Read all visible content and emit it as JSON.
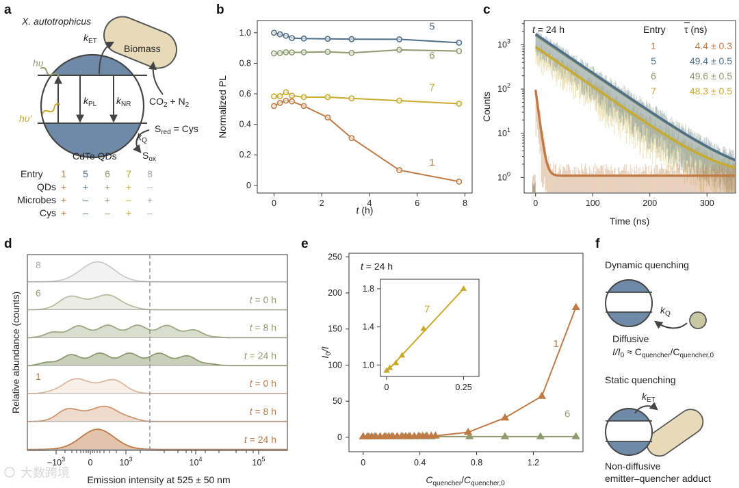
{
  "colors": {
    "entry1": "#c07a45",
    "entry5": "#4e6f89",
    "entry6": "#8f9a6e",
    "entry7": "#c8aa2c",
    "entry8": "#a6a6a6",
    "qd": "#6f8aa6",
    "microbe": "#e6dab8",
    "ink": "#222222"
  },
  "panel_a": {
    "letter": "a",
    "organism": "X. autotrophicus",
    "k_et_k": "k",
    "k_et_sub": "ET",
    "biomass": "Biomass",
    "hv": "hυ",
    "hv_prime": "hυ′",
    "k_pl_k": "k",
    "k_pl_sub": "PL",
    "k_nr_k": "k",
    "k_nr_sub": "NR",
    "co2_left": "CO",
    "co2_sub": "2",
    "co2_right": " + N",
    "n2_sub": "2",
    "sred_s": "S",
    "sred_sub": "red",
    "sred_rest": " = Cys",
    "kq_k": "k",
    "kq_sub": "Q",
    "sox_s": "S",
    "sox_sub": "ox",
    "qd_label": "CdTe QDs",
    "table": {
      "header_label": "Entry",
      "entries": [
        "1",
        "5",
        "6",
        "7",
        "8"
      ],
      "rows": [
        {
          "label": "QDs",
          "values": [
            "+",
            "+",
            "+",
            "+",
            "–"
          ]
        },
        {
          "label": "Microbes",
          "values": [
            "+",
            "–",
            "+",
            "–",
            "+"
          ]
        },
        {
          "label": "Cys",
          "values": [
            "+",
            "–",
            "–",
            "+",
            "–"
          ]
        }
      ]
    }
  },
  "chart_data": [
    {
      "id": "b",
      "letter": "b",
      "type": "line",
      "xlabel_var": "t",
      "xlabel_unit": " (h)",
      "ylabel": "Normalized PL",
      "xlim": [
        -0.7,
        8.3
      ],
      "ylim": [
        -0.05,
        1.08
      ],
      "xticks": [
        0,
        2,
        4,
        6,
        8
      ],
      "yticks": [
        0,
        0.2,
        0.4,
        0.6,
        0.8,
        1.0
      ],
      "ytick_labels": [
        "0",
        "0.2",
        "0.4",
        "0.6",
        "0.8",
        "1.0"
      ],
      "series": [
        {
          "name": "5",
          "color_key": "entry5",
          "x": [
            0,
            0.25,
            0.5,
            0.75,
            1.25,
            2.25,
            3.25,
            5.25,
            7.75
          ],
          "y": [
            1.0,
            0.99,
            0.98,
            0.965,
            0.962,
            0.96,
            0.958,
            0.957,
            0.935
          ]
        },
        {
          "name": "6",
          "color_key": "entry6",
          "x": [
            0,
            0.25,
            0.5,
            0.75,
            1.25,
            2.25,
            3.25,
            5.25,
            7.75
          ],
          "y": [
            0.865,
            0.867,
            0.872,
            0.871,
            0.872,
            0.875,
            0.868,
            0.888,
            0.88
          ]
        },
        {
          "name": "7",
          "color_key": "entry7",
          "x": [
            0,
            0.25,
            0.5,
            0.75,
            1.25,
            2.25,
            3.25,
            5.25,
            7.75
          ],
          "y": [
            0.583,
            0.585,
            0.61,
            0.588,
            0.578,
            0.578,
            0.57,
            0.555,
            0.535
          ]
        },
        {
          "name": "1",
          "color_key": "entry1",
          "x": [
            0,
            0.25,
            0.5,
            0.75,
            1.25,
            2.25,
            3.25,
            5.25,
            7.75
          ],
          "y": [
            0.52,
            0.54,
            0.555,
            0.55,
            0.52,
            0.445,
            0.31,
            0.1,
            0.025
          ]
        }
      ],
      "series_labels": [
        {
          "name": "5",
          "x": 6.5,
          "y": 1.02
        },
        {
          "name": "6",
          "x": 6.5,
          "y": 0.83
        },
        {
          "name": "7",
          "x": 6.5,
          "y": 0.62
        },
        {
          "name": "1",
          "x": 6.5,
          "y": 0.13
        }
      ]
    },
    {
      "id": "c",
      "letter": "c",
      "type": "line",
      "yscale": "log",
      "annotation_var": "t",
      "annotation_rest": " = 24 h",
      "xlabel": "Time (ns)",
      "ylabel": "Counts",
      "xlim": [
        -20,
        350
      ],
      "ylim_log": [
        -0.35,
        3.55
      ],
      "xticks": [
        0,
        100,
        200,
        300
      ],
      "yticks_exp": [
        0,
        1,
        2,
        3
      ],
      "legend_header_entry": "Entry",
      "legend_header_tau": "τ (ns)",
      "legend": [
        {
          "entry": "1",
          "tau": "4.4 ± 0.3",
          "color_key": "entry1"
        },
        {
          "entry": "5",
          "tau": "49.4 ± 0.5",
          "color_key": "entry5"
        },
        {
          "entry": "6",
          "tau": "49.6 ± 0.5",
          "color_key": "entry6"
        },
        {
          "entry": "7",
          "tau": "48.3 ± 0.5",
          "color_key": "entry7"
        }
      ],
      "series": [
        {
          "name": "7",
          "color_key": "entry7",
          "amplitude": 900,
          "tau_ns": 48.3,
          "baseline": 1.0
        },
        {
          "name": "6",
          "color_key": "entry6",
          "amplitude": 1650,
          "tau_ns": 49.6,
          "baseline": 1.0
        },
        {
          "name": "5",
          "color_key": "entry5",
          "amplitude": 1750,
          "tau_ns": 49.4,
          "baseline": 1.0
        },
        {
          "name": "1",
          "color_key": "entry1",
          "amplitude": 95,
          "tau_ns": 4.4,
          "baseline": 1.1
        }
      ]
    },
    {
      "id": "d",
      "letter": "d",
      "type": "area",
      "xlabel": "Emission intensity at 525 ± 50 nm",
      "ylabel": "Relative abundance (counts)",
      "xticks": [
        {
          "base": "−10",
          "exp": "3"
        },
        {
          "base": "0",
          "exp": ""
        },
        {
          "base": "10",
          "exp": "3"
        },
        {
          "base": "10",
          "exp": "4"
        },
        {
          "base": "10",
          "exp": "5"
        }
      ],
      "gate_line": "dashed",
      "rows": [
        {
          "entry": "8",
          "time_var": "",
          "time_rest": "",
          "color_key": "entry8",
          "fill_opacity": 0.25,
          "shape": "narrow"
        },
        {
          "entry": "6",
          "time_var": "t",
          "time_rest": " = 0 h",
          "color_key": "entry6",
          "fill_opacity": 0.3,
          "shape": "broad"
        },
        {
          "entry": "",
          "time_var": "t",
          "time_rest": " = 8 h",
          "color_key": "entry6",
          "fill_opacity": 0.55,
          "shape": "wide"
        },
        {
          "entry": "",
          "time_var": "t",
          "time_rest": " = 24 h",
          "color_key": "entry6",
          "fill_opacity": 0.8,
          "shape": "wide"
        },
        {
          "entry": "1",
          "time_var": "t",
          "time_rest": " = 0 h",
          "color_key": "entry1",
          "fill_opacity": 0.2,
          "shape": "broad"
        },
        {
          "entry": "",
          "time_var": "t",
          "time_rest": " = 8 h",
          "color_key": "entry1",
          "fill_opacity": 0.45,
          "shape": "broad"
        },
        {
          "entry": "",
          "time_var": "t",
          "time_rest": " = 24 h",
          "color_key": "entry1",
          "fill_opacity": 0.75,
          "shape": "narrow"
        }
      ]
    },
    {
      "id": "e",
      "letter": "e",
      "type": "line",
      "annotation_var": "t",
      "annotation_rest": " = 24 h",
      "xlabel_c": "C",
      "xlabel_sub1": "quencher",
      "xlabel_slash": "/",
      "xlabel_sub2": "quencher,0",
      "ylabel_i": "I",
      "ylabel_sub": "0",
      "ylabel_rest": "/I",
      "xlim": [
        -0.1,
        1.55
      ],
      "ylim": [
        -20,
        255
      ],
      "xticks": [
        0,
        0.4,
        0.8,
        1.2
      ],
      "xtick_labels": [
        "0",
        "0.4",
        "0.8",
        "1.2"
      ],
      "yticks": [
        0,
        50,
        100,
        150,
        200,
        250
      ],
      "series": [
        {
          "name": "1",
          "color_key": "entry1",
          "x": [
            0,
            0.03,
            0.06,
            0.09,
            0.12,
            0.15,
            0.18,
            0.21,
            0.24,
            0.27,
            0.3,
            0.33,
            0.36,
            0.39,
            0.42,
            0.45,
            0.48,
            0.51,
            0.74,
            1.0,
            1.26,
            1.5
          ],
          "y": [
            1.0,
            1.02,
            1.05,
            1.08,
            1.1,
            1.13,
            1.16,
            1.2,
            1.25,
            1.3,
            1.35,
            1.4,
            1.5,
            1.6,
            1.7,
            1.8,
            1.9,
            2.0,
            7,
            27,
            57,
            180
          ]
        },
        {
          "name": "6",
          "color_key": "entry6",
          "x": [
            0,
            0.04,
            0.08,
            0.12,
            0.16,
            0.2,
            0.24,
            0.28,
            0.32,
            0.36,
            0.4,
            0.44,
            0.48,
            0.75,
            1.0,
            1.25,
            1.5
          ],
          "y": [
            1,
            1,
            1,
            1,
            1,
            1,
            1,
            1,
            1,
            1,
            1,
            1,
            1,
            1,
            1,
            1,
            1
          ]
        }
      ],
      "series_labels": [
        {
          "name": "1",
          "x": 1.34,
          "y": 125
        },
        {
          "name": "6",
          "x": 1.42,
          "y": 28
        }
      ],
      "inset": {
        "xlim": [
          -0.02,
          0.3
        ],
        "ylim": [
          0.88,
          1.9
        ],
        "xticks": [
          0,
          0.25
        ],
        "xtick_labels": [
          "0",
          "0.25"
        ],
        "yticks": [
          1.0,
          1.4,
          1.8
        ],
        "ytick_labels": [
          "1.0",
          "1.4",
          "1.8"
        ],
        "series_name": "7",
        "color_key": "entry7",
        "x": [
          0.0,
          0.01,
          0.03,
          0.05,
          0.12,
          0.25
        ],
        "y": [
          0.94,
          0.97,
          1.02,
          1.1,
          1.38,
          1.8
        ],
        "fit": [
          [
            0.0,
            0.93
          ],
          [
            0.25,
            1.8
          ]
        ],
        "label_x": 0.1,
        "label_y": 1.55
      }
    }
  ],
  "panel_f": {
    "letter": "f",
    "dynamic_title": "Dynamic quenching",
    "kq_k": "k",
    "kq_sub": "Q",
    "diffusive": "Diffusive",
    "relation_i": "I",
    "relation_i0": "/I",
    "relation_sub0": "0",
    "relation_approx": " ≈ C",
    "relation_sub_q": "quencher",
    "relation_slash": "/C",
    "relation_sub_q0": "quencher,0",
    "static_title": "Static quenching",
    "ket_k": "k",
    "ket_sub": "ET",
    "nondiffusive": "Non-diffusive",
    "adduct": "emitter–quencher adduct"
  },
  "watermark": "大数跨境"
}
